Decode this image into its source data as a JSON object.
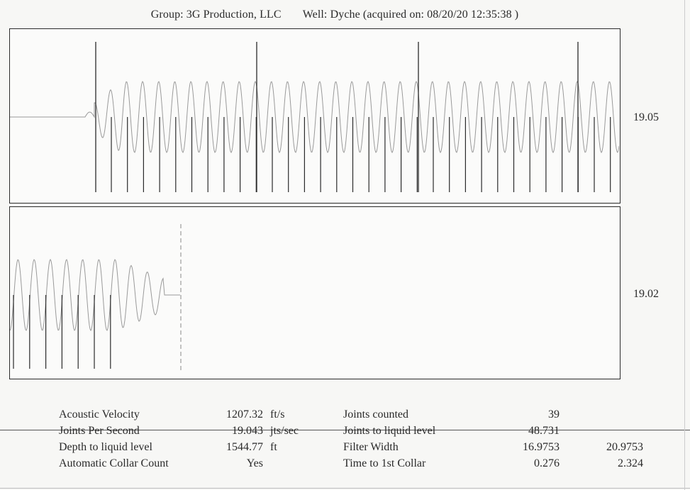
{
  "header": {
    "group": "Group: 3G Production, LLC",
    "well": "Well: Dyche (acquired on: 08/20/20 12:35:38 )"
  },
  "panels": [
    {
      "side_value": "19.05"
    },
    {
      "side_value": "19.02"
    }
  ],
  "stats": {
    "rows": [
      {
        "label": "Acoustic Velocity",
        "value": "1207.32",
        "unit": "ft/s",
        "label2": "Joints counted",
        "value2": "39",
        "value3": ""
      },
      {
        "label": "Joints Per Second",
        "value": "19.043",
        "unit": "jts/sec",
        "label2": "Joints to liquid level",
        "value2": "48.731",
        "value3": ""
      },
      {
        "label": "Depth to liquid level",
        "value": "1544.77",
        "unit": "ft",
        "label2": "Filter Width",
        "value2": "16.9753",
        "value3": "20.9753"
      },
      {
        "label": "Automatic Collar Count",
        "value": "Yes",
        "unit": "",
        "label2": "Time to 1st Collar",
        "value2": "0.276",
        "value3": "2.324"
      }
    ]
  },
  "colors": {
    "wave": "#9a9a9a",
    "marker": "#2a2a2a",
    "border": "#2b2b2b"
  }
}
